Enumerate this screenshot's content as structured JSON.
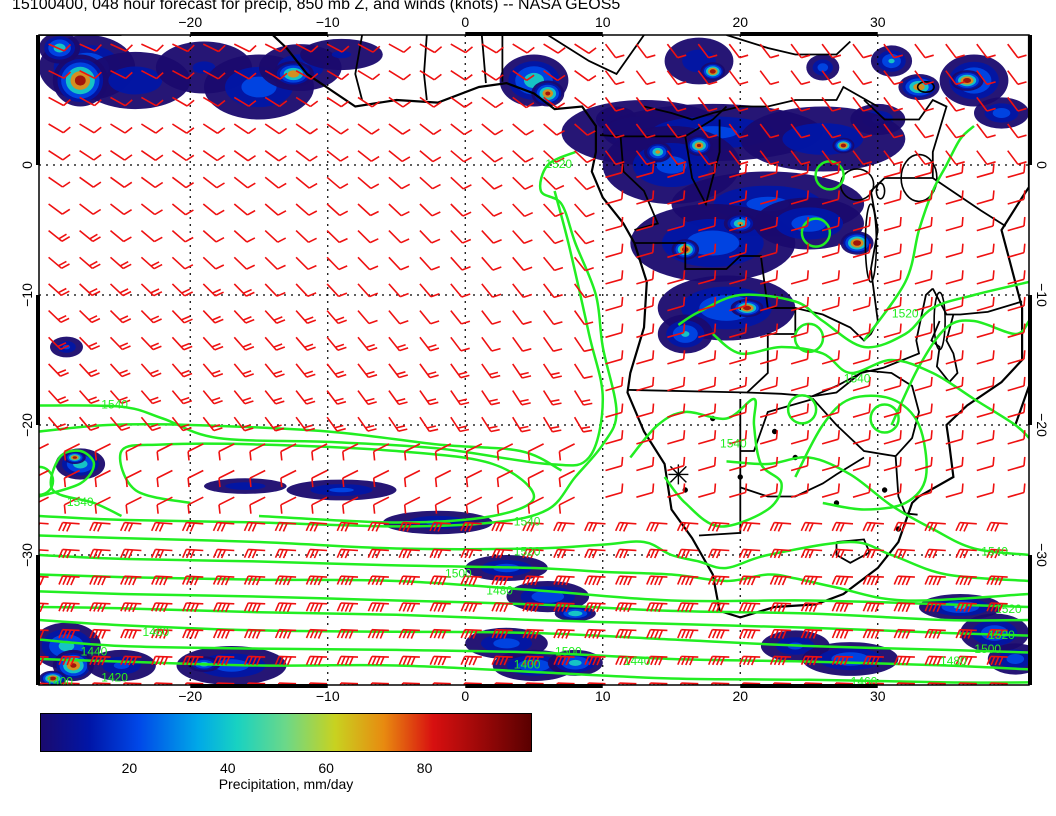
{
  "title": "15100400, 048 hour forecast for precip, 850 mb Z, and winds (knots) -- NASA GEOS5",
  "map": {
    "lon_range": [
      -31,
      41
    ],
    "lat_range": [
      -40,
      10
    ],
    "lon_ticks": [
      -20,
      -10,
      0,
      10,
      20,
      30
    ],
    "lat_ticks": [
      0,
      -10,
      -20,
      -30
    ],
    "lon_labels": [
      "−20",
      "−10",
      "0",
      "10",
      "20",
      "30"
    ],
    "lat_labels": [
      "0",
      "−10",
      "−20",
      "−30"
    ],
    "grid": "dotted",
    "colors": {
      "contour": "#22ee22",
      "barb": "#ee1111",
      "coast": "#000000"
    },
    "contour_labels": [
      "1520",
      "1540",
      "1540",
      "1540",
      "1540",
      "1540",
      "1520",
      "1500",
      "1480",
      "1460",
      "1440",
      "1420",
      "1400",
      "1400",
      "1440",
      "1500",
      "1520",
      "1480",
      "1460",
      "1520",
      "1500",
      "1540",
      "1520"
    ]
  },
  "colorbar": {
    "label": "Precipitation, mm/day",
    "ticks": [
      "20",
      "40",
      "60",
      "80"
    ],
    "tick_values": [
      20,
      40,
      60,
      80
    ],
    "range": [
      0,
      100
    ],
    "colors": [
      "#1a0a6e",
      "#0016a8",
      "#0048e8",
      "#00a8e8",
      "#18d2c2",
      "#6cd888",
      "#c8d220",
      "#e88a10",
      "#d81010",
      "#9a0808",
      "#5a0000"
    ]
  }
}
